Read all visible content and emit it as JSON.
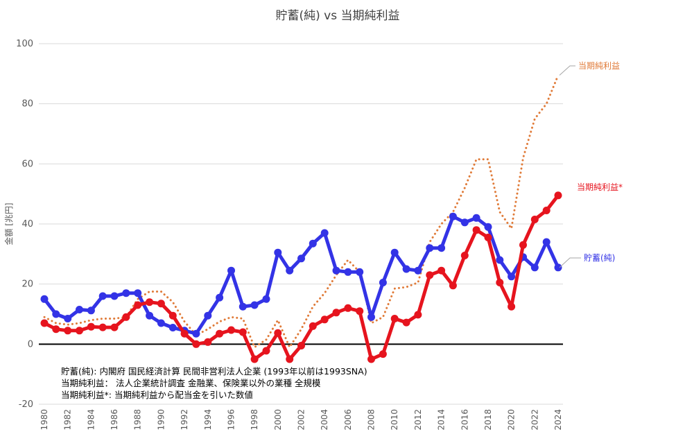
{
  "chart_data": {
    "type": "line",
    "title": "貯蓄(純) vs 当期純利益",
    "ylabel": "金額 [兆円]",
    "xlabel": "",
    "ylim": [
      -20,
      100
    ],
    "yticks": [
      -20,
      0,
      20,
      40,
      60,
      80,
      100
    ],
    "grid": true,
    "x": [
      1980,
      1981,
      1982,
      1983,
      1984,
      1985,
      1986,
      1987,
      1988,
      1989,
      1990,
      1991,
      1992,
      1993,
      1994,
      1995,
      1996,
      1997,
      1998,
      1999,
      2000,
      2001,
      2002,
      2003,
      2004,
      2005,
      2006,
      2007,
      2008,
      2009,
      2010,
      2011,
      2012,
      2013,
      2014,
      2015,
      2016,
      2017,
      2018,
      2019,
      2020,
      2021,
      2022,
      2023,
      2024
    ],
    "xtick_labels": [
      "1980",
      "1982",
      "1984",
      "1986",
      "1988",
      "1990",
      "1992",
      "1994",
      "1996",
      "1998",
      "2000",
      "2002",
      "2004",
      "2006",
      "2008",
      "2010",
      "2012",
      "2014",
      "2016",
      "2018",
      "2020",
      "2022",
      "2024"
    ],
    "series": [
      {
        "name": "貯蓄(純)",
        "color": "#3333e6",
        "style": "solid-markers",
        "values": [
          15,
          10,
          8.5,
          11.5,
          11.2,
          16,
          16,
          17,
          17,
          9.5,
          7,
          5.5,
          4.5,
          3.5,
          9.5,
          15.5,
          24.5,
          12.5,
          13,
          15,
          30.5,
          24.5,
          28.5,
          33.5,
          37,
          24.5,
          24,
          24,
          9,
          20.5,
          30.5,
          25,
          24.5,
          32,
          32,
          42.5,
          40.5,
          42,
          39,
          28,
          22.5,
          29,
          25.5,
          34,
          25.5
        ]
      },
      {
        "name": "当期純利益*",
        "color": "#e6141e",
        "style": "solid-markers",
        "values": [
          7,
          5,
          4.5,
          4.5,
          5.8,
          5.6,
          5.6,
          9,
          13,
          14,
          13.5,
          9.5,
          3.5,
          0,
          0.7,
          3.5,
          4.7,
          4,
          -5,
          -2.2,
          3.7,
          -5,
          -0.5,
          6,
          8.2,
          10.5,
          12,
          11,
          -5,
          -3.3,
          8.5,
          7.2,
          9.8,
          23,
          24.5,
          19.5,
          29.5,
          38,
          35.5,
          20.5,
          12.5,
          33,
          41.5,
          44.5,
          49.5
        ]
      },
      {
        "name": "当期純利益",
        "color": "#e07b39",
        "style": "dotted",
        "values": [
          9,
          7,
          6.5,
          7,
          8,
          8.5,
          8.5,
          9,
          15,
          17.5,
          17.5,
          14,
          7.5,
          3,
          5,
          7.5,
          9,
          8.5,
          -1,
          1.5,
          8,
          -1,
          5,
          12.5,
          17,
          23,
          28,
          24,
          7,
          9,
          18.5,
          19,
          20.5,
          34,
          40,
          44,
          52,
          61.5,
          61.5,
          44,
          38.5,
          62,
          75,
          80,
          89.5
        ]
      }
    ],
    "end_labels": [
      "貯蓄(純)",
      "当期純利益*",
      "当期純利益"
    ],
    "notes": [
      "貯蓄(純): 内閣府 国民経済計算 民間非営利法人企業 (1993年以前は1993SNA)",
      "当期純利益： 法人企業統計調査 金融業、保険業以外の業種 全規模",
      "当期純利益*:  当期純利益から配当金を引いた数値"
    ]
  }
}
